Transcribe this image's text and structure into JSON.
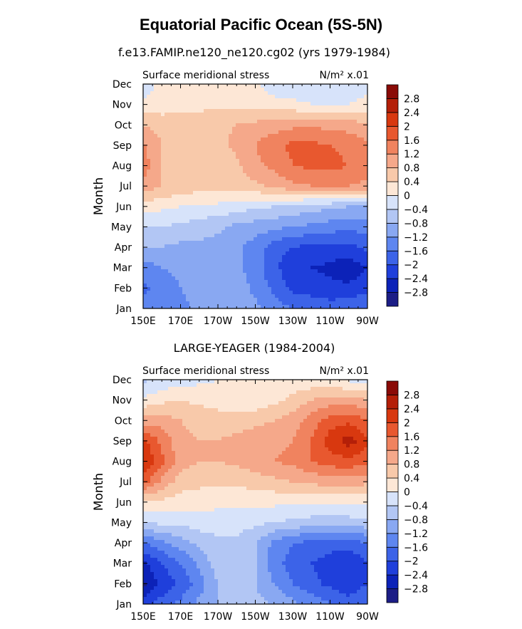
{
  "page": {
    "title": "Equatorial Pacific Ocean (5S-5N)"
  },
  "palette": {
    "colors": [
      "#1c1d86",
      "#0c22b8",
      "#1f3fdb",
      "#3c63e8",
      "#5e86f0",
      "#89a8f2",
      "#b2c6f4",
      "#d7e3fa",
      "#fde7d6",
      "#f8c9aa",
      "#f5a88a",
      "#f0835f",
      "#e8582f",
      "#d8380f",
      "#b41f08",
      "#8a0b07"
    ]
  },
  "chart_data": [
    {
      "type": "heatmap",
      "title": "f.e13.FAMIP.ne120_ne120.cg02 (yrs 1979-1984)",
      "left_string": "Surface meridional stress",
      "right_string": "N/m² x.01",
      "ylabel": "Month",
      "x_ticks": [
        "150E",
        "170E",
        "170W",
        "150W",
        "130W",
        "110W",
        "90W"
      ],
      "y_ticks": [
        "Jan",
        "Feb",
        "Mar",
        "Apr",
        "May",
        "Jun",
        "Jul",
        "Aug",
        "Sep",
        "Oct",
        "Nov",
        "Dec"
      ],
      "levels": [
        -2.8,
        -2.4,
        -2.0,
        -1.6,
        -1.2,
        -0.8,
        -0.4,
        0,
        0.4,
        0.8,
        1.2,
        1.6,
        2.0,
        2.4,
        2.8
      ],
      "x_values": [
        150,
        160,
        170,
        180,
        190,
        200,
        210,
        220,
        230,
        240,
        250,
        260,
        270
      ],
      "z": [
        [
          -1.4,
          -1.5,
          -1.4,
          -1.0,
          -0.9,
          -0.9,
          -1.1,
          -1.4,
          -1.6,
          -1.7,
          -1.8,
          -1.7,
          -1.6
        ],
        [
          -1.7,
          -1.4,
          -1.2,
          -1.0,
          -0.9,
          -1.0,
          -1.3,
          -1.7,
          -2.1,
          -2.2,
          -2.3,
          -2.3,
          -2.1
        ],
        [
          -1.4,
          -1.2,
          -1.1,
          -0.9,
          -0.9,
          -1.1,
          -1.4,
          -1.9,
          -2.3,
          -2.4,
          -2.5,
          -2.7,
          -2.4
        ],
        [
          -0.8,
          -0.8,
          -0.9,
          -0.9,
          -1.0,
          -1.1,
          -1.4,
          -1.8,
          -2.0,
          -2.1,
          -2.1,
          -2.1,
          -1.9
        ],
        [
          -0.4,
          -0.4,
          -0.5,
          -0.6,
          -0.7,
          -0.9,
          -1.0,
          -1.1,
          -1.2,
          -1.3,
          -1.4,
          -1.5,
          -1.4
        ],
        [
          0.2,
          0.1,
          0.0,
          -0.1,
          -0.1,
          -0.2,
          -0.3,
          -0.4,
          -0.5,
          -0.6,
          -0.7,
          -0.8,
          -0.8
        ],
        [
          1.1,
          0.8,
          0.7,
          0.6,
          0.6,
          0.6,
          0.7,
          0.9,
          1.1,
          1.2,
          1.3,
          1.2,
          1.1
        ],
        [
          1.4,
          0.8,
          0.7,
          0.6,
          0.6,
          0.7,
          1.1,
          1.3,
          1.6,
          1.7,
          1.7,
          1.6,
          1.4
        ],
        [
          1.3,
          0.8,
          0.7,
          0.7,
          0.7,
          0.9,
          1.2,
          1.5,
          1.7,
          1.7,
          1.6,
          1.5,
          1.3
        ],
        [
          0.8,
          0.6,
          0.6,
          0.6,
          0.7,
          0.8,
          0.9,
          1.0,
          1.1,
          1.1,
          1.1,
          1.0,
          0.9
        ],
        [
          0.1,
          0.2,
          0.3,
          0.3,
          0.3,
          0.3,
          0.3,
          0.2,
          0.1,
          0.0,
          -0.1,
          0.0,
          0.1
        ],
        [
          -0.3,
          0.2,
          0.2,
          0.3,
          0.3,
          0.3,
          0.1,
          -0.3,
          -0.3,
          -0.3,
          -0.2,
          -0.2,
          -0.1
        ]
      ]
    },
    {
      "type": "heatmap",
      "title": "LARGE-YEAGER (1984-2004)",
      "left_string": "Surface meridional stress",
      "right_string": "N/m² x.01",
      "ylabel": "Month",
      "x_ticks": [
        "150E",
        "170E",
        "170W",
        "150W",
        "130W",
        "110W",
        "90W"
      ],
      "y_ticks": [
        "Jan",
        "Feb",
        "Mar",
        "Apr",
        "May",
        "Jun",
        "Jul",
        "Aug",
        "Sep",
        "Oct",
        "Nov",
        "Dec"
      ],
      "levels": [
        -2.8,
        -2.4,
        -2.0,
        -1.6,
        -1.2,
        -0.8,
        -0.4,
        0,
        0.4,
        0.8,
        1.2,
        1.6,
        2.0,
        2.4,
        2.8
      ],
      "x_values": [
        150,
        160,
        170,
        180,
        190,
        200,
        210,
        220,
        230,
        240,
        250,
        260,
        270
      ],
      "z": [
        [
          -2.2,
          -1.8,
          -1.5,
          -1.1,
          -0.8,
          -0.7,
          -0.7,
          -0.8,
          -1.1,
          -1.3,
          -1.6,
          -1.8,
          -1.6
        ],
        [
          -2.9,
          -2.3,
          -1.9,
          -1.4,
          -0.8,
          -0.6,
          -0.8,
          -1.2,
          -1.6,
          -1.9,
          -2.1,
          -2.3,
          -2.0
        ],
        [
          -2.5,
          -2.0,
          -1.6,
          -1.1,
          -0.6,
          -0.5,
          -0.8,
          -1.4,
          -1.8,
          -2.0,
          -2.2,
          -2.4,
          -2.0
        ],
        [
          -1.6,
          -1.3,
          -1.0,
          -0.7,
          -0.5,
          -0.5,
          -0.8,
          -1.3,
          -1.6,
          -1.7,
          -1.8,
          -1.8,
          -1.6
        ],
        [
          -0.4,
          -0.3,
          -0.3,
          -0.2,
          -0.2,
          -0.2,
          -0.3,
          -0.4,
          -0.5,
          -0.6,
          -0.6,
          -0.6,
          -0.5
        ],
        [
          0.3,
          0.3,
          0.2,
          0.2,
          0.1,
          0.1,
          0.1,
          0.1,
          0.1,
          0.1,
          0.1,
          0.1,
          0.1
        ],
        [
          1.8,
          1.1,
          0.6,
          0.5,
          0.5,
          0.5,
          0.6,
          0.7,
          0.8,
          0.9,
          1.0,
          1.0,
          0.9
        ],
        [
          2.5,
          1.7,
          1.0,
          0.8,
          0.8,
          0.9,
          1.0,
          1.2,
          1.3,
          1.6,
          1.8,
          1.9,
          1.7
        ],
        [
          2.1,
          1.5,
          0.9,
          0.8,
          0.8,
          0.9,
          1.0,
          1.1,
          1.2,
          1.6,
          2.2,
          2.6,
          2.1
        ],
        [
          1.0,
          1.0,
          0.8,
          0.7,
          0.6,
          0.6,
          0.7,
          0.8,
          1.0,
          1.4,
          1.8,
          1.9,
          1.6
        ],
        [
          0.1,
          0.3,
          0.4,
          0.3,
          0.2,
          0.1,
          0.1,
          0.3,
          0.5,
          0.8,
          1.0,
          1.0,
          0.8
        ],
        [
          -0.5,
          -0.3,
          -0.2,
          -0.1,
          0.0,
          0.1,
          0.1,
          0.2,
          0.2,
          0.1,
          0.0,
          -0.1,
          -0.2
        ]
      ]
    }
  ]
}
